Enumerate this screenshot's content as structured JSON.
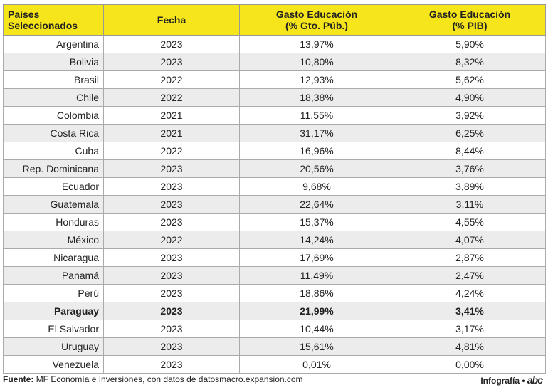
{
  "table": {
    "header": [
      [
        "Países Seleccionados"
      ],
      [
        "Fecha"
      ],
      [
        "Gasto Educación",
        "(% Gto. Púb.)"
      ],
      [
        "Gasto Educación",
        "(% PIB)"
      ]
    ],
    "rows": [
      {
        "cells": [
          "Argentina",
          "2023",
          "13,97%",
          "5,90%"
        ]
      },
      {
        "cells": [
          "Bolivia",
          "2023",
          "10,80%",
          "8,32%"
        ]
      },
      {
        "cells": [
          "Brasil",
          "2022",
          "12,93%",
          "5,62%"
        ]
      },
      {
        "cells": [
          "Chile",
          "2022",
          "18,38%",
          "4,90%"
        ]
      },
      {
        "cells": [
          "Colombia",
          "2021",
          "11,55%",
          "3,92%"
        ]
      },
      {
        "cells": [
          "Costa Rica",
          "2021",
          "31,17%",
          "6,25%"
        ]
      },
      {
        "cells": [
          "Cuba",
          "2022",
          "16,96%",
          "8,44%"
        ]
      },
      {
        "cells": [
          "Rep. Dominicana",
          "2023",
          "20,56%",
          "3,76%"
        ]
      },
      {
        "cells": [
          "Ecuador",
          "2023",
          "9,68%",
          "3,89%"
        ]
      },
      {
        "cells": [
          "Guatemala",
          "2023",
          "22,64%",
          "3,11%"
        ]
      },
      {
        "cells": [
          "Honduras",
          "2023",
          "15,37%",
          "4,55%"
        ]
      },
      {
        "cells": [
          "México",
          "2022",
          "14,24%",
          "4,07%"
        ]
      },
      {
        "cells": [
          "Nicaragua",
          "2023",
          "17,69%",
          "2,87%"
        ]
      },
      {
        "cells": [
          "Panamá",
          "2023",
          "11,49%",
          "2,47%"
        ]
      },
      {
        "cells": [
          "Perú",
          "2023",
          "18,86%",
          "4,24%"
        ]
      },
      {
        "cells": [
          "Paraguay",
          "2023",
          "21,99%",
          "3,41%"
        ],
        "bold": true
      },
      {
        "cells": [
          "El Salvador",
          "2023",
          "10,44%",
          "3,17%"
        ]
      },
      {
        "cells": [
          "Uruguay",
          "2023",
          "15,61%",
          "4,81%"
        ]
      },
      {
        "cells": [
          "Venezuela",
          "2023",
          "0,01%",
          "0,00%"
        ]
      }
    ]
  },
  "footer": {
    "source_label": "Fuente:",
    "source": "MF Economía e Inversiones, con datos de datosmacro.expansion.com",
    "credit": "Infografía •",
    "logo": "abc"
  }
}
